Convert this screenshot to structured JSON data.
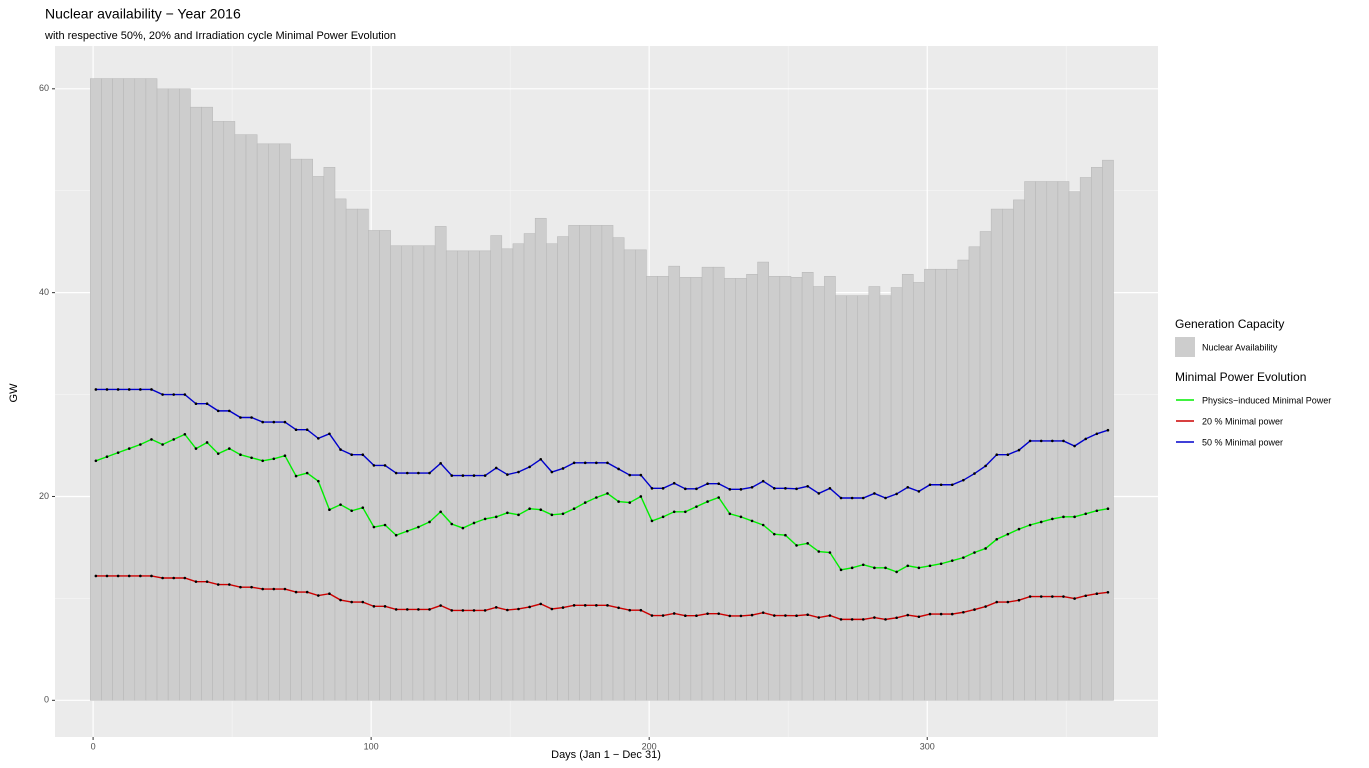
{
  "chart_data": {
    "type": "combo",
    "title": "Nuclear availability − Year 2016",
    "subtitle": "with respective 50%, 20% and Irradiation cycle Minimal Power Evolution",
    "x_label": "Days (Jan 1 − Dec 31)",
    "y_label": "GW",
    "xlim": [
      -13.7,
      383
    ],
    "ylim": [
      -3.6,
      64.2
    ],
    "xticks": [
      0,
      100,
      200,
      300
    ],
    "yticks": [
      0,
      20,
      40,
      60
    ],
    "grid": true,
    "legend_titles": [
      "Generation Capacity",
      "Minimal Power Evolution"
    ],
    "x": [
      1,
      5,
      9,
      13,
      17,
      21,
      25,
      29,
      33,
      37,
      41,
      45,
      49,
      53,
      57,
      61,
      65,
      69,
      73,
      77,
      81,
      85,
      89,
      93,
      97,
      101,
      105,
      109,
      113,
      117,
      121,
      125,
      129,
      133,
      137,
      141,
      145,
      149,
      153,
      157,
      161,
      165,
      169,
      173,
      177,
      181,
      185,
      189,
      193,
      197,
      201,
      205,
      209,
      213,
      217,
      221,
      225,
      229,
      233,
      237,
      241,
      245,
      249,
      253,
      257,
      261,
      265,
      269,
      273,
      277,
      281,
      285,
      289,
      293,
      297,
      301,
      305,
      309,
      313,
      317,
      321,
      325,
      329,
      333,
      337,
      341,
      345,
      349,
      353,
      357,
      361,
      365
    ],
    "series": [
      {
        "name": "Nuclear Availability",
        "type": "bar",
        "group": 0,
        "color": "#cdcdcd",
        "values": [
          61,
          61,
          61,
          61,
          61,
          61,
          60,
          60,
          60,
          58.2,
          58.2,
          56.8,
          56.8,
          55.5,
          55.5,
          54.6,
          54.6,
          54.6,
          53.1,
          53.1,
          51.4,
          52.3,
          49.2,
          48.2,
          48.2,
          46.1,
          46.1,
          44.6,
          44.6,
          44.6,
          44.6,
          46.5,
          44.1,
          44.1,
          44.1,
          44.1,
          45.6,
          44.3,
          44.8,
          45.8,
          47.3,
          44.8,
          45.5,
          46.6,
          46.6,
          46.6,
          46.6,
          45.4,
          44.2,
          44.2,
          41.6,
          41.6,
          42.6,
          41.5,
          41.5,
          42.5,
          42.5,
          41.4,
          41.4,
          41.8,
          43,
          41.6,
          41.6,
          41.5,
          42,
          40.6,
          41.6,
          39.7,
          39.7,
          39.7,
          40.6,
          39.7,
          40.5,
          41.8,
          41,
          42.3,
          42.3,
          42.3,
          43.2,
          44.5,
          46,
          48.2,
          48.2,
          49.1,
          50.9,
          50.9,
          50.9,
          50.9,
          49.9,
          51.3,
          52.3,
          53
        ]
      },
      {
        "name": "Physics−induced Minimal Power",
        "type": "line",
        "group": 1,
        "color": "#00ee00",
        "values": [
          23.5,
          23.9,
          24.3,
          24.7,
          25.1,
          25.6,
          25.1,
          25.6,
          26.1,
          24.7,
          25.3,
          24.2,
          24.7,
          24.1,
          23.8,
          23.5,
          23.7,
          24,
          22,
          22.3,
          21.5,
          18.7,
          19.2,
          18.6,
          18.9,
          17,
          17.2,
          16.2,
          16.6,
          17,
          17.5,
          18.5,
          17.3,
          16.9,
          17.4,
          17.8,
          18,
          18.4,
          18.2,
          18.8,
          18.7,
          18.2,
          18.3,
          18.8,
          19.4,
          19.9,
          20.3,
          19.5,
          19.4,
          20,
          17.6,
          18,
          18.5,
          18.5,
          19,
          19.5,
          19.9,
          18.3,
          18,
          17.6,
          17.2,
          16.3,
          16.2,
          15.2,
          15.4,
          14.6,
          14.5,
          12.8,
          13,
          13.3,
          13,
          13,
          12.6,
          13.2,
          13,
          13.2,
          13.4,
          13.7,
          14,
          14.5,
          14.9,
          15.8,
          16.3,
          16.8,
          17.2,
          17.5,
          17.8,
          18,
          18,
          18.3,
          18.6,
          18.8
        ]
      },
      {
        "name": "20 % Minimal power",
        "type": "line",
        "group": 1,
        "color": "#cc0000",
        "values": [
          12.2,
          12.2,
          12.2,
          12.2,
          12.2,
          12.2,
          12,
          12,
          12,
          11.64,
          11.64,
          11.36,
          11.36,
          11.1,
          11.1,
          10.92,
          10.92,
          10.92,
          10.62,
          10.62,
          10.28,
          10.46,
          9.84,
          9.64,
          9.64,
          9.22,
          9.22,
          8.92,
          8.92,
          8.92,
          8.92,
          9.3,
          8.82,
          8.82,
          8.82,
          8.82,
          9.12,
          8.86,
          8.96,
          9.16,
          9.46,
          8.96,
          9.1,
          9.32,
          9.32,
          9.32,
          9.32,
          9.08,
          8.84,
          8.84,
          8.32,
          8.32,
          8.52,
          8.3,
          8.3,
          8.5,
          8.5,
          8.28,
          8.28,
          8.36,
          8.6,
          8.32,
          8.32,
          8.3,
          8.4,
          8.12,
          8.32,
          7.94,
          7.94,
          7.94,
          8.12,
          7.94,
          8.1,
          8.36,
          8.2,
          8.46,
          8.46,
          8.46,
          8.64,
          8.9,
          9.2,
          9.64,
          9.64,
          9.82,
          10.18,
          10.18,
          10.18,
          10.18,
          9.98,
          10.26,
          10.46,
          10.6
        ]
      },
      {
        "name": "50 % Minimal power",
        "type": "line",
        "group": 1,
        "color": "#0000cc",
        "values": [
          30.5,
          30.5,
          30.5,
          30.5,
          30.5,
          30.5,
          30,
          30,
          30,
          29.1,
          29.1,
          28.4,
          28.4,
          27.75,
          27.75,
          27.3,
          27.3,
          27.3,
          26.55,
          26.55,
          25.7,
          26.15,
          24.6,
          24.1,
          24.1,
          23.05,
          23.05,
          22.3,
          22.3,
          22.3,
          22.3,
          23.25,
          22.05,
          22.05,
          22.05,
          22.05,
          22.8,
          22.15,
          22.4,
          22.9,
          23.65,
          22.4,
          22.75,
          23.3,
          23.3,
          23.3,
          23.3,
          22.7,
          22.1,
          22.1,
          20.8,
          20.8,
          21.3,
          20.75,
          20.75,
          21.25,
          21.25,
          20.7,
          20.7,
          20.9,
          21.5,
          20.8,
          20.8,
          20.75,
          21,
          20.3,
          20.8,
          19.85,
          19.85,
          19.85,
          20.3,
          19.85,
          20.25,
          20.9,
          20.5,
          21.15,
          21.15,
          21.15,
          21.6,
          22.25,
          23,
          24.1,
          24.1,
          24.55,
          25.45,
          25.45,
          25.45,
          25.45,
          24.95,
          25.65,
          26.15,
          26.5
        ]
      }
    ]
  }
}
